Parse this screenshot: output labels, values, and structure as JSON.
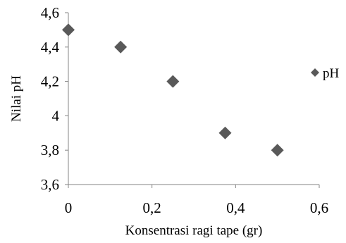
{
  "chart_data": {
    "type": "scatter",
    "title": "",
    "xlabel": "Konsentrasi ragi tape (gr)",
    "ylabel": "Nilai pH",
    "xlim": [
      0,
      0.6
    ],
    "ylim": [
      3.6,
      4.6
    ],
    "x_ticks": [
      "0",
      "0,2",
      "0,4",
      "0,6"
    ],
    "y_ticks": [
      "3,6",
      "3,8",
      "4",
      "4,2",
      "4,4",
      "4,6"
    ],
    "grid": false,
    "legend_position": "right",
    "marker": "diamond",
    "colors": {
      "marker": "#595959",
      "axis": "#868686",
      "text": "#000000"
    },
    "series": [
      {
        "name": "pH",
        "x": [
          0,
          0.125,
          0.25,
          0.375,
          0.5
        ],
        "y": [
          4.5,
          4.4,
          4.2,
          3.9,
          3.8
        ]
      }
    ]
  }
}
